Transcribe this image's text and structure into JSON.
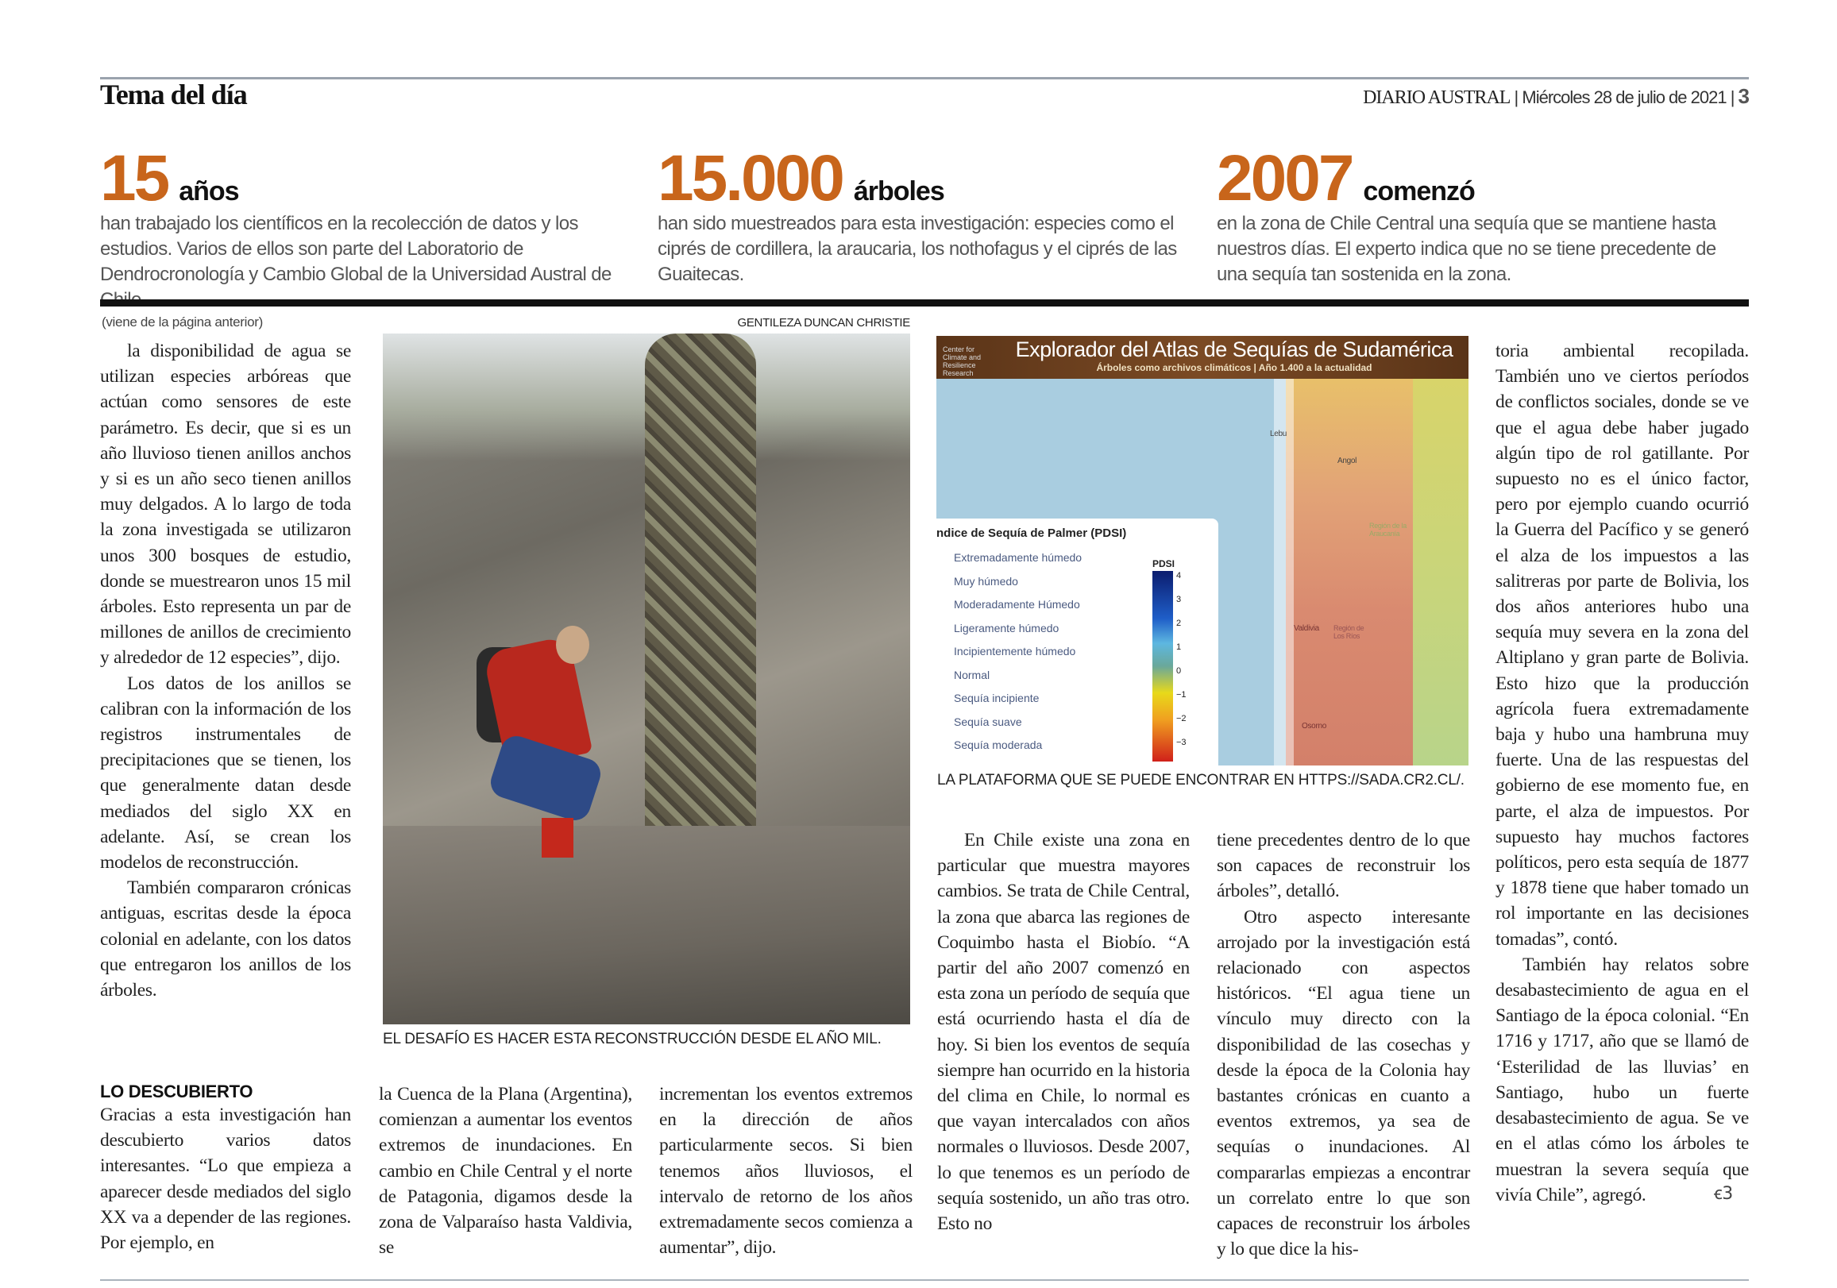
{
  "header": {
    "section": "Tema del día",
    "paper": "DIARIO AUSTRAL",
    "date": "Miércoles 28 de julio de 2021",
    "page": "3"
  },
  "stats": [
    {
      "number": "15",
      "unit": "años",
      "desc": "han trabajado los científicos en la recolección de datos y los estudios. Varios de ellos son parte del Laboratorio de Dendrocronología y Cambio Global de la Universidad Austral de Chile."
    },
    {
      "number": "15.000",
      "unit": "árboles",
      "desc": "han sido muestreados para esta investigación: especies como el ciprés de cordillera, la araucaria, los nothofagus y el ciprés de las Guaitecas."
    },
    {
      "number": "2007",
      "unit": "comenzó",
      "desc": "en la zona de Chile Central una sequía que se mantiene hasta nuestros días. El experto indica que no se tiene precedente de una sequía tan sostenida en la zona."
    }
  ],
  "article": {
    "continued": "(viene de la página anterior)",
    "col1": [
      "la disponibilidad de agua se utilizan especies arbóreas que actúan como sensores de este parámetro. Es decir, que si es un año lluvioso tienen anillos anchos y si es un año seco tienen anillos muy delgados. A lo largo de toda la zona investigada se utilizaron unos 300 bosques de estudio, donde se muestrearon unos 15 mil árboles. Esto representa un par de millones de anillos de crecimiento y alrededor de 12 especies”, dijo.",
      "Los datos de los anillos se calibran con la información de los registros instrumentales de precipitaciones que se tienen, los que generalmente datan desde mediados del siglo XX en adelante. Así, se crean los modelos de reconstrucción.",
      "También compararon crónicas antiguas, escritas desde la época colonial en adelante, con los datos que entregaron los anillos de los árboles."
    ],
    "subhead": "LO DESCUBIERTO",
    "col1b": "Gracias a esta investigación han descubierto varios datos interesantes. “Lo que empieza a aparecer desde mediados del siglo XX va a depender de las regiones. Por ejemplo, en",
    "col2": "la Cuenca de la Plana (Argentina), comienzan a aumentar los eventos extremos de inundaciones. En cambio en Chile Central y el norte de Patagonia, digamos desde la zona de Valparaíso hasta Valdivia, se",
    "col3": "incrementan los eventos extremos en la dirección de años particularmente secos. Si bien tenemos años lluviosos, el intervalo de retorno de los años extremadamente secos comienza a aumentar”, dijo.",
    "col4": "En Chile existe una zona en particular que muestra mayores cambios. Se trata de Chile Central, la zona que abarca las regiones de Coquimbo hasta el Biobío. “A partir del año 2007 comenzó en esta zona un período de sequía que está ocurriendo hasta el día de hoy. Si bien los eventos de sequía siempre han ocurrido en la historia del clima en Chile, lo normal es que vayan intercalados con años normales o lluviosos. Desde 2007, lo que tenemos es un período de sequía sostenido, un año tras otro. Esto no",
    "col5": [
      "tiene precedentes dentro de lo que son capaces de reconstruir los árboles”, detalló.",
      "Otro aspecto interesante arrojado por la investigación está relacionado con aspectos históricos. “El agua tiene un vínculo muy directo con la disponibilidad de las cosechas y desde la época de la Colonia hay bastantes crónicas en cuanto a eventos extremos, ya sea de sequías o inundaciones. Al compararlas empiezas a encontrar un correlato entre lo que son capaces de reconstruir los árboles y lo que dice la his-"
    ],
    "col6": [
      "toria ambiental recopilada. También uno ve ciertos períodos de conflictos sociales, donde se ve que el agua debe haber jugado algún tipo de rol gatillante. Por supuesto no es el único factor, pero por ejemplo cuando ocurrió la Guerra del Pacífico y se generó el alza de los impuestos a las salitreras por parte de Bolivia, los dos años anteriores hubo una sequía muy severa en la zona del Altiplano y gran parte de Bolivia. Esto hizo que la producción agrícola fuera extremadamente baja y hubo una hambruna muy fuerte. Una de las respuestas del gobierno de ese momento fue, en parte, el alza de impuestos. Por supuesto hay muchos factores políticos, pero esta sequía de 1877 y 1878 tiene que haber tomado un rol importante en las decisiones tomadas”, contó.",
      "También hay relatos sobre desabastecimiento de agua en el Santiago de la época colonial. “En 1716 y 1717, año que se llamó de ‘Esterilidad de las lluvias’ en Santiago, hubo un fuerte desabastecimiento de agua. Se ve en el atlas cómo los árboles te muestran la severa sequía que vivía Chile”, agregó."
    ],
    "end_mark": "ꞓ3"
  },
  "photo": {
    "credit": "GENTILEZA DUNCAN CHRISTIE",
    "caption": "EL DESAFÍO ES HACER ESTA RECONSTRUCCIÓN DESDE EL AÑO MIL."
  },
  "map": {
    "title": "Explorador del Atlas de Sequías de Sudamérica",
    "subtitle": "Árboles como archivos climáticos | Año 1.400 a la actualidad",
    "logo": "Center for Climate and Resilience Research",
    "legend_title": "ndice de Sequía de Palmer (PDSI)",
    "legend_items": [
      "Extremadamente húmedo",
      "Muy húmedo",
      "Moderadamente Húmedo",
      "Ligeramente húmedo",
      "Incipientemente húmedo",
      "Normal",
      "Sequía incipiente",
      "Sequía suave",
      "Sequía moderada"
    ],
    "scale_label": "PDSI",
    "scale_ticks": [
      "4",
      "3",
      "2",
      "1",
      "0",
      "−1",
      "−2",
      "−3"
    ],
    "places": [
      "Lebu",
      "Angol",
      "Región de la Araucanía",
      "Valdivia",
      "Región de Los Ríos",
      "Osorno"
    ],
    "caption": "LA PLATAFORMA QUE SE PUEDE ENCONTRAR EN HTTPS://SADA.CR2.CL/."
  },
  "colors": {
    "accent": "#c8651b",
    "rule": "#111111"
  }
}
